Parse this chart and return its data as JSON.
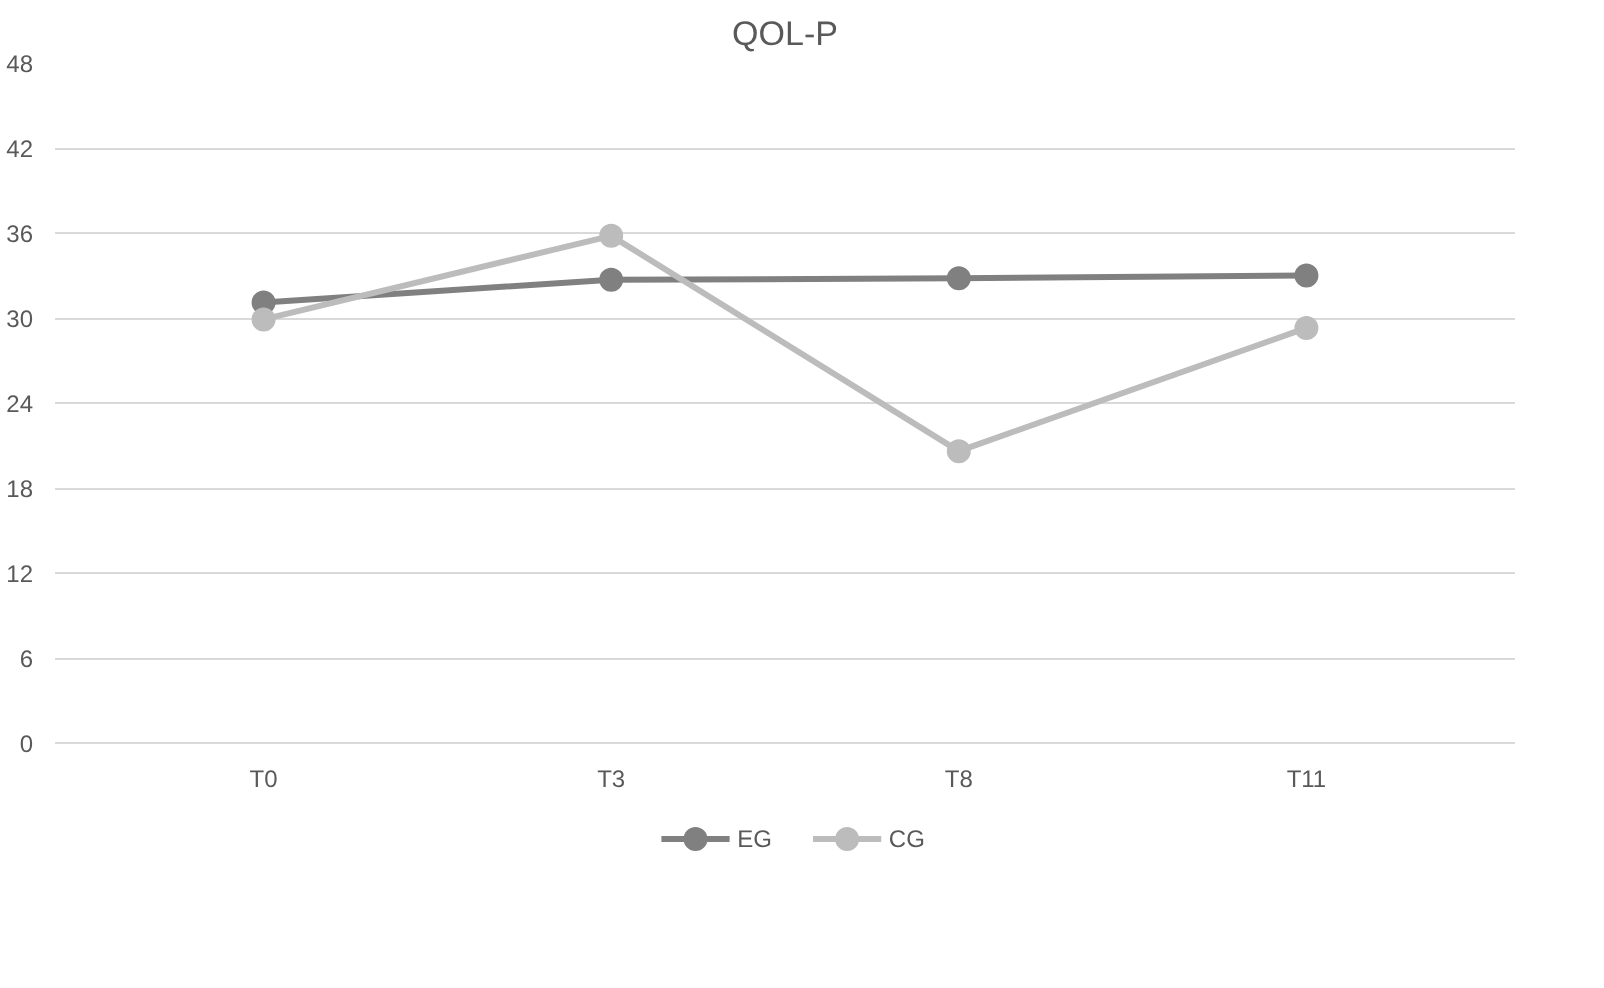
{
  "chart_data": {
    "type": "line",
    "title": "QOL-P",
    "categories": [
      "T0",
      "T3",
      "T8",
      "T11"
    ],
    "series": [
      {
        "name": "EG",
        "color": "#808080",
        "values": [
          31.1,
          32.7,
          32.8,
          33.0
        ]
      },
      {
        "name": "CG",
        "color": "#bcbcbc",
        "values": [
          29.9,
          35.8,
          20.6,
          29.3
        ]
      }
    ],
    "ylim": [
      0,
      48
    ],
    "yticks": [
      0,
      6,
      12,
      18,
      24,
      30,
      36,
      42,
      48
    ],
    "grid": "y",
    "legend": "bottom",
    "marker": "circle",
    "line_style": "solid"
  }
}
